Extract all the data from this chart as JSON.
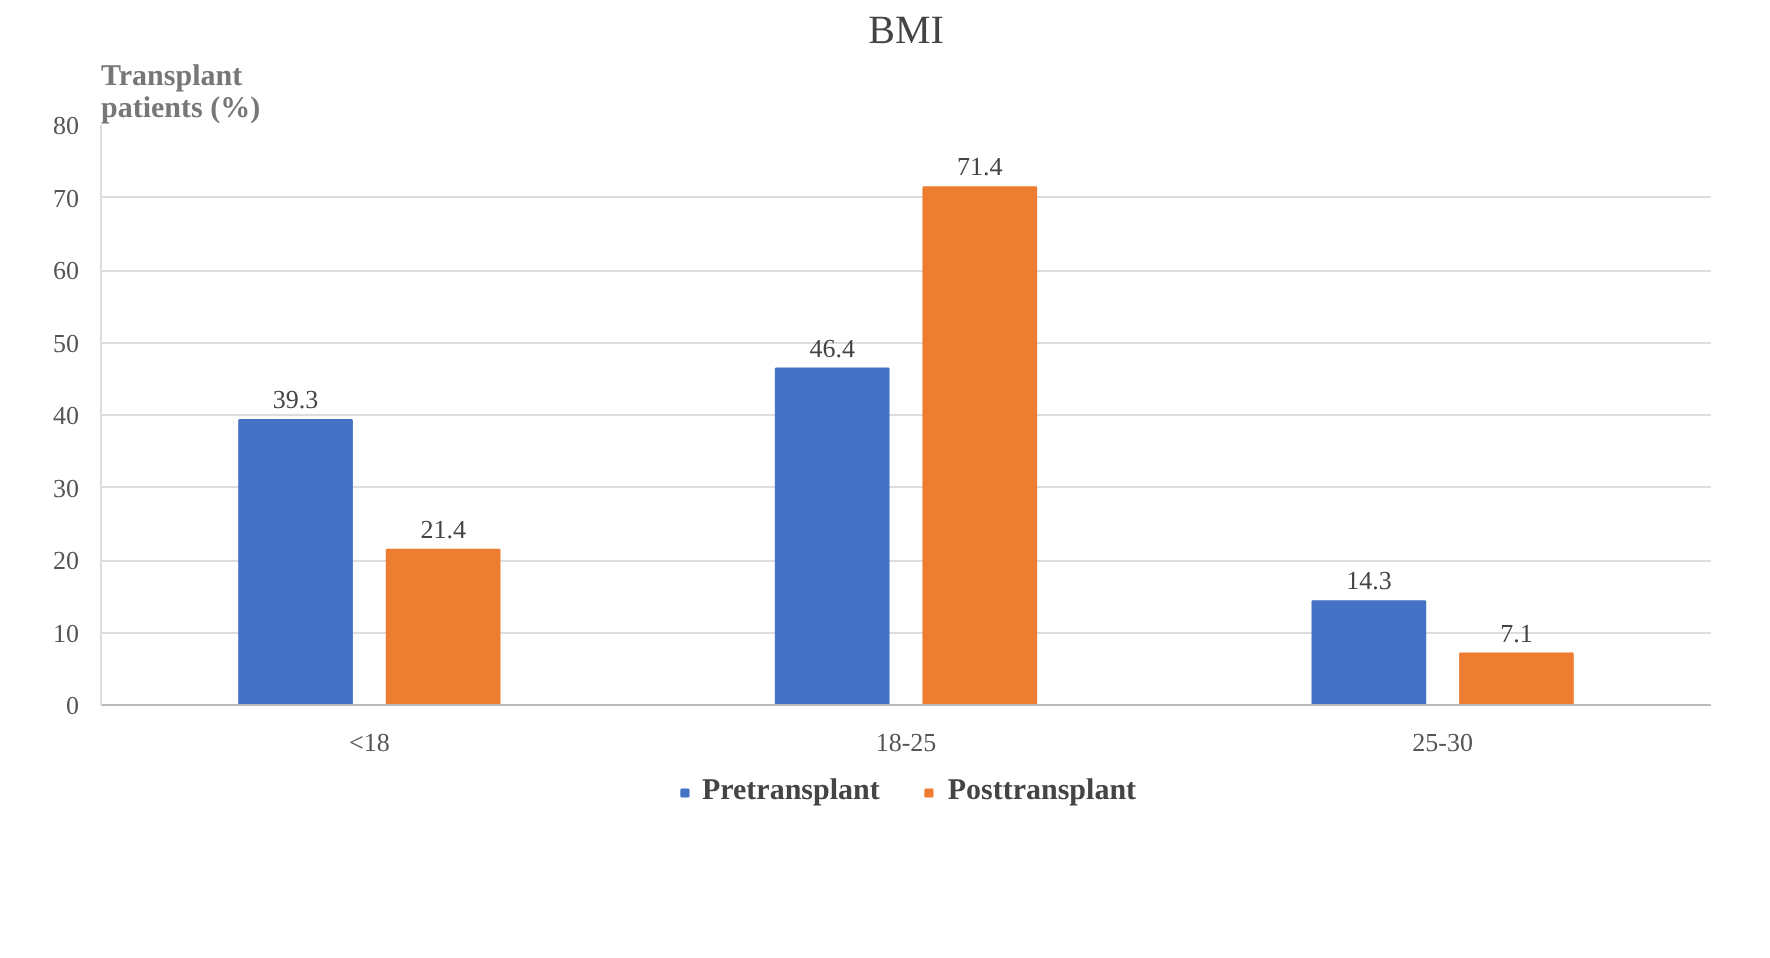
{
  "chart_data": {
    "type": "bar",
    "title": "BMI",
    "ylabel": "Transplant patients (%)",
    "categories": [
      "<18",
      "18-25",
      "25-30"
    ],
    "series": [
      {
        "name": "Pretransplant",
        "color": "#4472c4",
        "values": [
          39.3,
          46.4,
          14.3
        ]
      },
      {
        "name": "Posttransplant",
        "color": "#ed7d31",
        "values": [
          21.4,
          71.4,
          7.1
        ]
      }
    ],
    "ylim": [
      0,
      80
    ],
    "yticks": [
      0,
      10,
      20,
      30,
      40,
      50,
      60,
      70,
      80
    ],
    "grid": "y",
    "legend": "bottom",
    "data_labels": true
  }
}
